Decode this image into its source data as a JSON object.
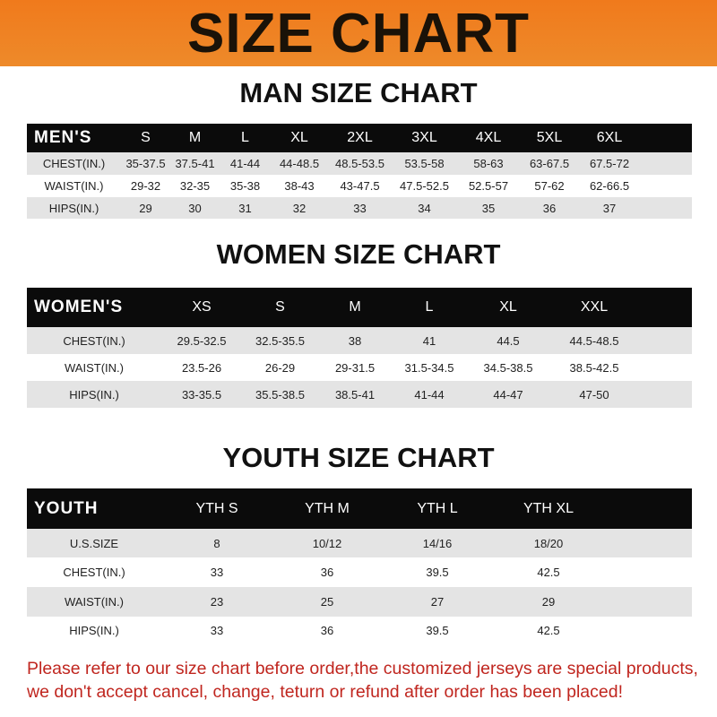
{
  "banner_title": "SIZE CHART",
  "men": {
    "title": "MAN SIZE CHART",
    "headers": [
      "MEN'S",
      "S",
      "M",
      "L",
      "XL",
      "2XL",
      "3XL",
      "4XL",
      "5XL",
      "6XL",
      ""
    ],
    "rows": [
      [
        "CHEST(IN.)",
        "35-37.5",
        "37.5-41",
        "41-44",
        "44-48.5",
        "48.5-53.5",
        "53.5-58",
        "58-63",
        "63-67.5",
        "67.5-72",
        ""
      ],
      [
        "WAIST(IN.)",
        "29-32",
        "32-35",
        "35-38",
        "38-43",
        "43-47.5",
        "47.5-52.5",
        "52.5-57",
        "57-62",
        "62-66.5",
        ""
      ],
      [
        "HIPS(IN.)",
        "29",
        "30",
        "31",
        "32",
        "33",
        "34",
        "35",
        "36",
        "37",
        ""
      ]
    ]
  },
  "women": {
    "title": "WOMEN SIZE CHART",
    "headers": [
      "WOMEN'S",
      "XS",
      "S",
      "M",
      "L",
      "XL",
      "XXL",
      ""
    ],
    "rows": [
      [
        "CHEST(IN.)",
        "29.5-32.5",
        "32.5-35.5",
        "38",
        "41",
        "44.5",
        "44.5-48.5",
        ""
      ],
      [
        "WAIST(IN.)",
        "23.5-26",
        "26-29",
        "29-31.5",
        "31.5-34.5",
        "34.5-38.5",
        "38.5-42.5",
        ""
      ],
      [
        "HIPS(IN.)",
        "33-35.5",
        "35.5-38.5",
        "38.5-41",
        "41-44",
        "44-47",
        "47-50",
        ""
      ]
    ]
  },
  "youth": {
    "title": "YOUTH SIZE CHART",
    "headers": [
      "YOUTH",
      "YTH S",
      "YTH M",
      "YTH L",
      "YTH XL",
      ""
    ],
    "rows": [
      [
        "U.S.SIZE",
        "8",
        "10/12",
        "14/16",
        "18/20",
        ""
      ],
      [
        "CHEST(IN.)",
        "33",
        "36",
        "39.5",
        "42.5",
        ""
      ],
      [
        "WAIST(IN.)",
        "23",
        "25",
        "27",
        "29",
        ""
      ],
      [
        "HIPS(IN.)",
        "33",
        "36",
        "39.5",
        "42.5",
        ""
      ]
    ]
  },
  "note": [
    "Please refer to our size chart before order,the customized jerseys are special products,",
    "we don't accept cancel, change, teturn or refund after order has been placed!"
  ]
}
